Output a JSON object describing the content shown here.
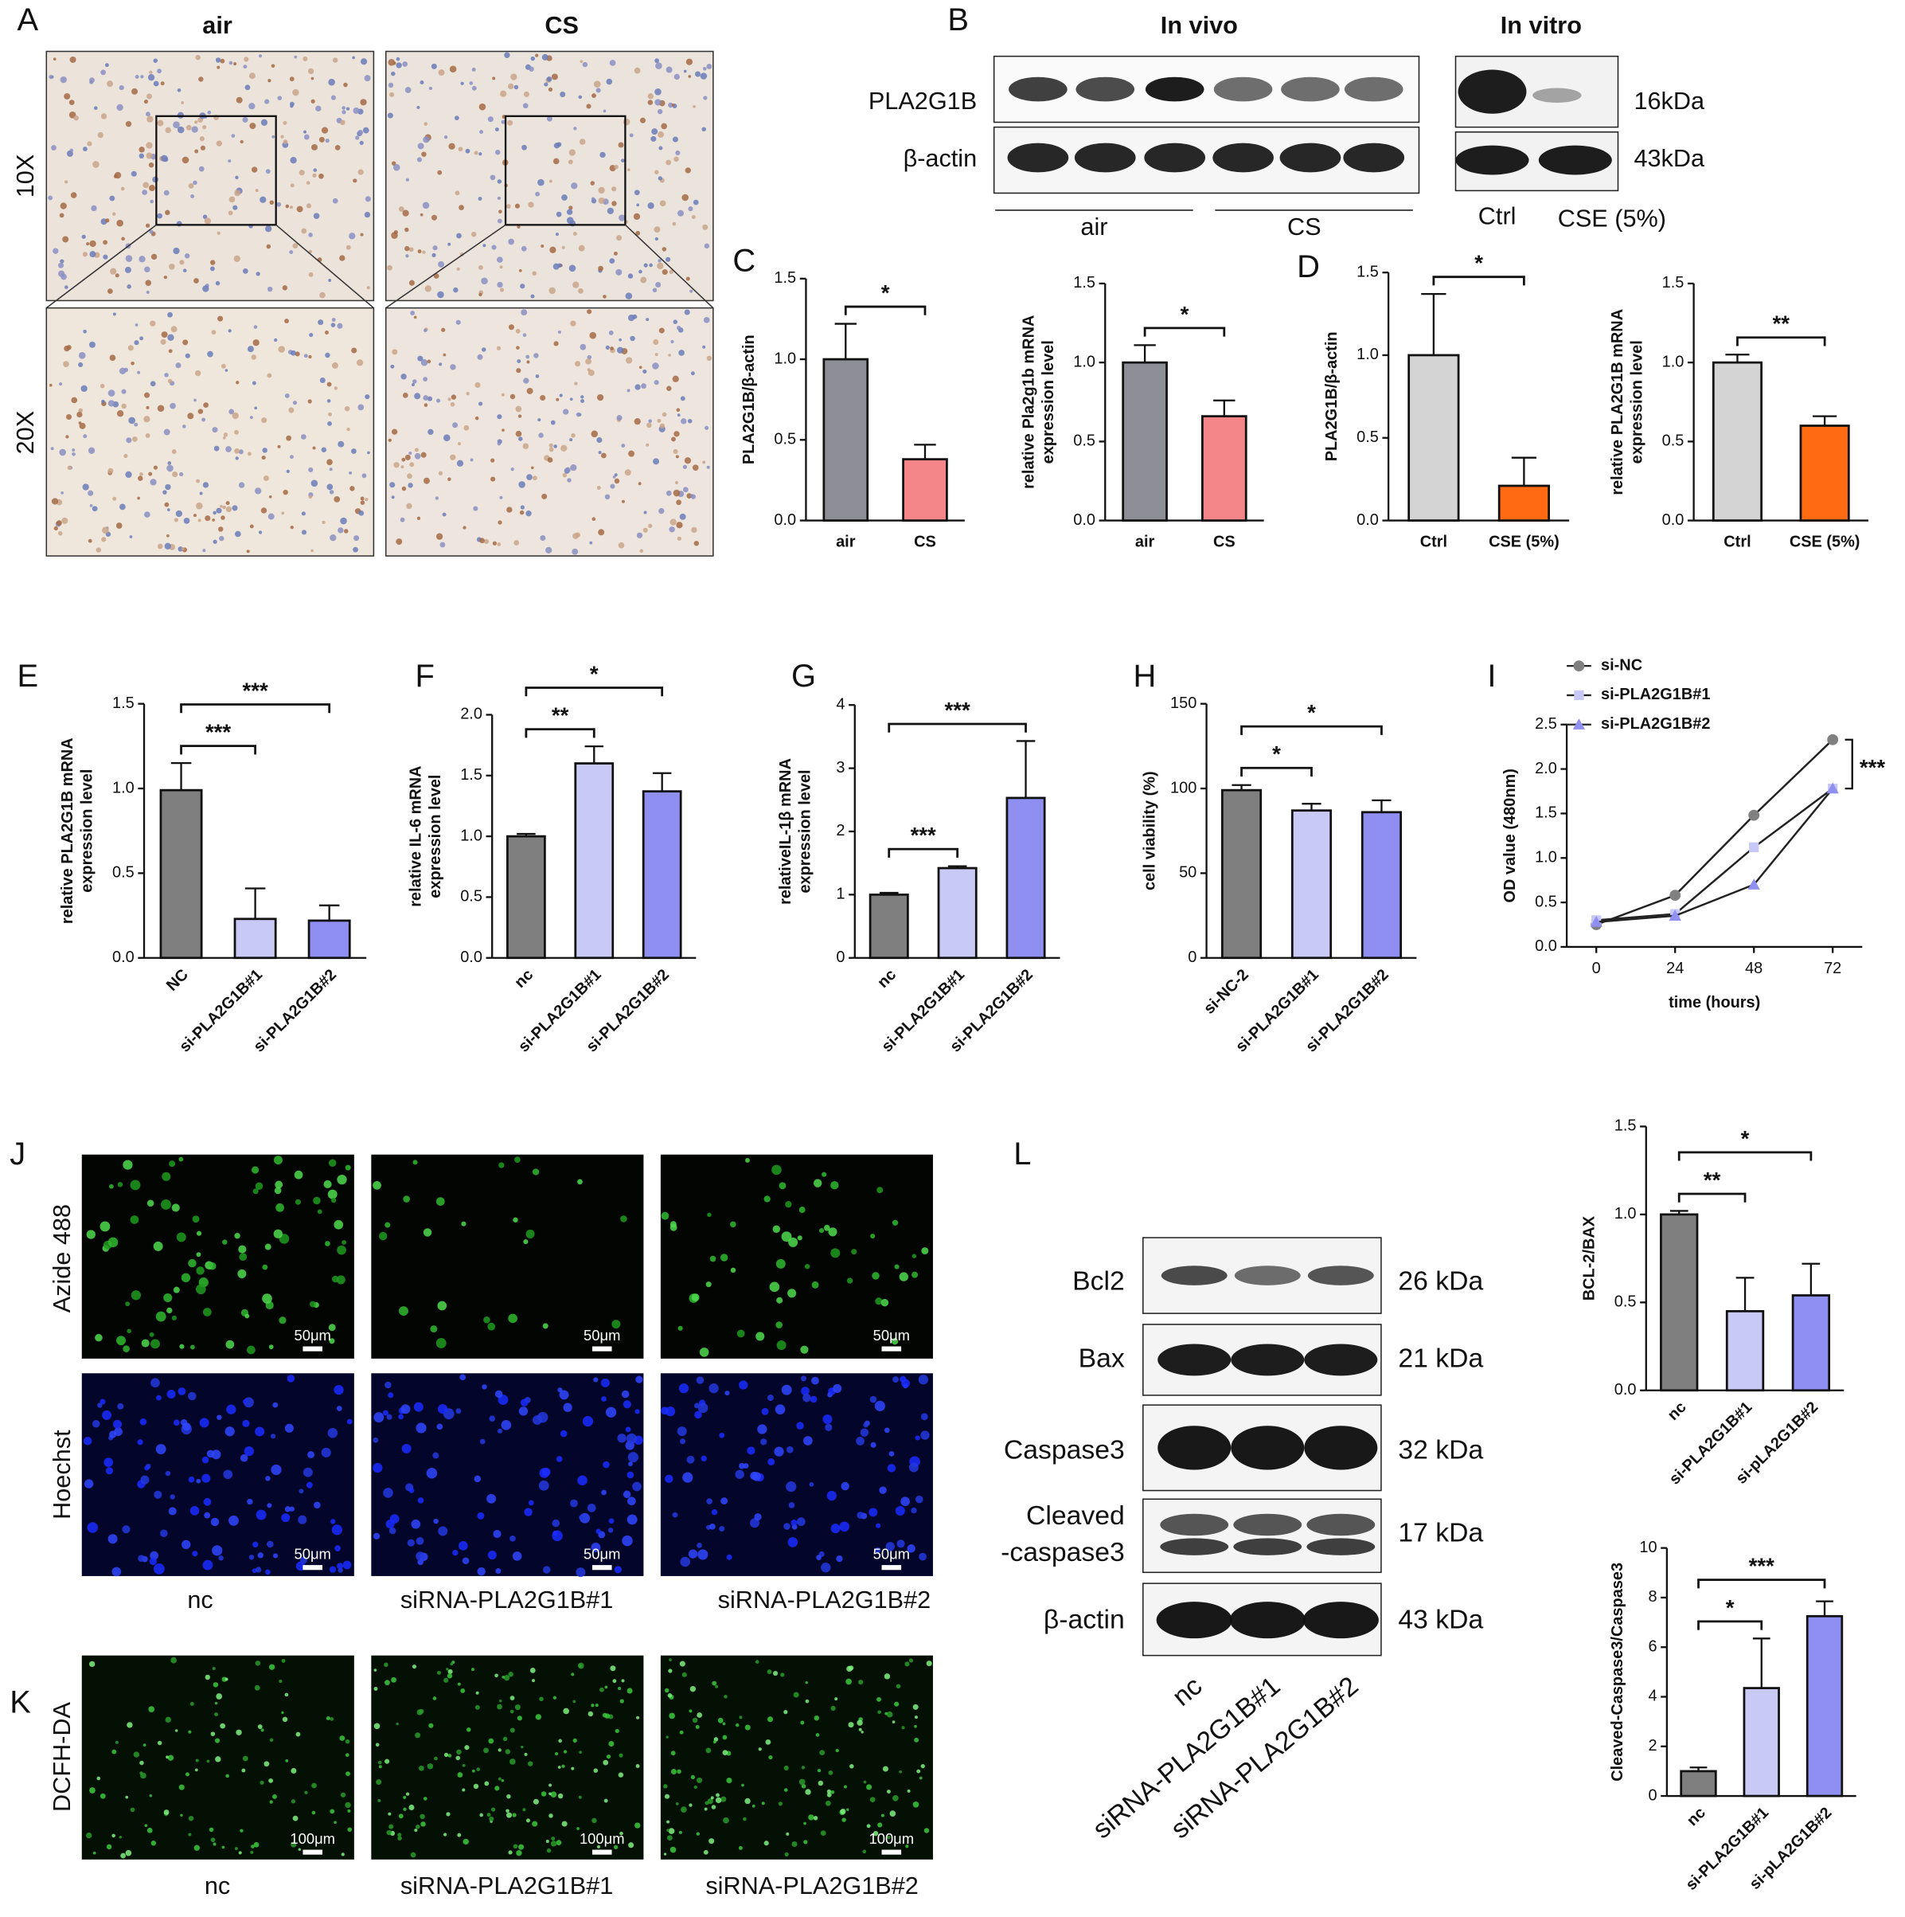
{
  "panel_labels": [
    "A",
    "B",
    "C",
    "D",
    "E",
    "F",
    "G",
    "H",
    "I",
    "J",
    "K",
    "L"
  ],
  "panel_a": {
    "columns": [
      "air",
      "CS"
    ],
    "rows": [
      "10X",
      "20X"
    ]
  },
  "panel_b": {
    "in_vivo": "In vivo",
    "in_vitro": "In vitro",
    "proteins": [
      "PLA2G1B",
      "β-actin"
    ],
    "sizes": [
      "16kDa",
      "43kDa"
    ],
    "groups_vivo": [
      "air",
      "CS"
    ],
    "groups_vitro": [
      "Ctrl",
      "CSE (5%)"
    ]
  },
  "panel_j": {
    "rows": [
      "Azide 488",
      "Hoechst"
    ],
    "scale": "50μm",
    "columns": [
      "nc",
      "siRNA-PLA2G1B#1",
      "siRNA-PLA2G1B#2"
    ]
  },
  "panel_k": {
    "row": "DCFH-DA",
    "scale": "100μm",
    "columns": [
      "nc",
      "siRNA-PLA2G1B#1",
      "siRNA-PLA2G1B#2"
    ]
  },
  "panel_l": {
    "proteins": [
      [
        "Bcl2"
      ],
      [
        "Bax"
      ],
      [
        "Caspase3"
      ],
      [
        "Cleaved",
        "-caspase3"
      ],
      [
        "β-actin"
      ]
    ],
    "sizes": [
      "26 kDa",
      "21 kDa",
      "32 kDa",
      "17 kDa",
      "43 kDa"
    ],
    "lanes": [
      "nc",
      "siRNA-PLA2G1B#1",
      "siRNA-PLA2G1B#2"
    ]
  },
  "chart_data": [
    {
      "type": "bar",
      "y_label": [
        "PLA2G1B/β-actin"
      ],
      "categories": [
        "air",
        "CS"
      ],
      "values": [
        1.0,
        0.38
      ],
      "errors": [
        0.22,
        0.09
      ],
      "colors": [
        "#8e8e96",
        "#f4868a"
      ],
      "ylim": [
        0,
        1.5
      ],
      "yticks": [
        {
          "value": 0,
          "label": "0.0"
        },
        {
          "value": 0.5,
          "label": "0.5"
        },
        {
          "value": 1,
          "label": "1.0"
        },
        {
          "value": 1.5,
          "label": "1.5"
        }
      ],
      "annotations": [
        "*"
      ]
    },
    {
      "type": "bar",
      "y_label": [
        "relative Pla2g1b mRNA",
        "expression level"
      ],
      "categories": [
        "air",
        "CS"
      ],
      "values": [
        1.0,
        0.66
      ],
      "errors": [
        0.11,
        0.1
      ],
      "colors": [
        "#8e8e96",
        "#f4868a"
      ],
      "ylim": [
        0,
        1.5
      ],
      "yticks": [
        {
          "value": 0,
          "label": "0.0"
        },
        {
          "value": 0.5,
          "label": "0.5"
        },
        {
          "value": 1,
          "label": "1.0"
        },
        {
          "value": 1.5,
          "label": "1.5"
        }
      ],
      "annotations": [
        "*"
      ]
    },
    {
      "type": "bar",
      "y_label": [
        "PLA2G1B/β-actin"
      ],
      "categories": [
        "Ctrl",
        "CSE (5%)"
      ],
      "values": [
        1.0,
        0.21
      ],
      "errors": [
        0.37,
        0.17
      ],
      "colors": [
        "#d4d4d4",
        "#ff6a13"
      ],
      "ylim": [
        0,
        1.5
      ],
      "yticks": [
        {
          "value": 0,
          "label": "0.0"
        },
        {
          "value": 0.5,
          "label": "0.5"
        },
        {
          "value": 1,
          "label": "1.0"
        },
        {
          "value": 1.5,
          "label": "1.5"
        }
      ],
      "annotations": [
        "*"
      ]
    },
    {
      "type": "bar",
      "y_label": [
        "relative PLA2G1B mRNA",
        "expression level"
      ],
      "categories": [
        "Ctrl",
        "CSE (5%)"
      ],
      "values": [
        1.0,
        0.6
      ],
      "errors": [
        0.05,
        0.06
      ],
      "colors": [
        "#d4d4d4",
        "#ff6a13"
      ],
      "ylim": [
        0,
        1.5
      ],
      "yticks": [
        {
          "value": 0,
          "label": "0.0"
        },
        {
          "value": 0.5,
          "label": "0.5"
        },
        {
          "value": 1,
          "label": "1.0"
        },
        {
          "value": 1.5,
          "label": "1.5"
        }
      ],
      "annotations": [
        "**"
      ]
    },
    {
      "type": "bar",
      "y_label": [
        "relative PLA2G1B mRNA",
        "expression level"
      ],
      "categories": [
        "NC",
        "si-PLA2G1B#1",
        "si-PLA2G1B#2"
      ],
      "values": [
        0.99,
        0.23,
        0.22
      ],
      "errors": [
        0.16,
        0.18,
        0.09
      ],
      "colors": [
        "#7f7f7f",
        "#c9c9f6",
        "#8f8ff2"
      ],
      "ylim": [
        0,
        1.5
      ],
      "yticks": [
        {
          "value": 0,
          "label": "0.0"
        },
        {
          "value": 0.5,
          "label": "0.5"
        },
        {
          "value": 1,
          "label": "1.0"
        },
        {
          "value": 1.5,
          "label": "1.5"
        }
      ],
      "annotations": [
        "***",
        "***"
      ]
    },
    {
      "type": "bar",
      "y_label": [
        "relative IL-6 mRNA",
        "expression level"
      ],
      "categories": [
        "nc",
        "si-PLA2G1B#1",
        "si-PLA2G1B#2"
      ],
      "values": [
        1.0,
        1.6,
        1.37
      ],
      "errors": [
        0.02,
        0.14,
        0.15
      ],
      "colors": [
        "#7f7f7f",
        "#c9c9f6",
        "#8f8ff2"
      ],
      "ylim": [
        0,
        2
      ],
      "yticks": [
        {
          "value": 0,
          "label": "0.0"
        },
        {
          "value": 0.5,
          "label": "0.5"
        },
        {
          "value": 1,
          "label": "1.0"
        },
        {
          "value": 1.5,
          "label": "1.5"
        },
        {
          "value": 2,
          "label": "2.0"
        }
      ],
      "annotations": [
        "**",
        "*"
      ]
    },
    {
      "type": "bar",
      "y_label": [
        "relativeIL-1β mRNA",
        "expression level"
      ],
      "categories": [
        "nc",
        "si-PLA2G1B#1",
        "si-PLA2G1B#2"
      ],
      "values": [
        1.0,
        1.42,
        2.53
      ],
      "errors": [
        0.03,
        0.03,
        0.9
      ],
      "colors": [
        "#7f7f7f",
        "#c9c9f6",
        "#8f8ff2"
      ],
      "ylim": [
        0,
        4
      ],
      "yticks": [
        0,
        1,
        2,
        3,
        4
      ],
      "annotations": [
        "***",
        "***"
      ]
    },
    {
      "type": "bar",
      "y_label": [
        "cell viability (%)"
      ],
      "categories": [
        "si-NC-2",
        "si-PLA2G1B#1",
        "si-PLA2G1B#2"
      ],
      "values": [
        99,
        87,
        86
      ],
      "errors": [
        3,
        4,
        7
      ],
      "colors": [
        "#7f7f7f",
        "#c9c9f6",
        "#8f8ff2"
      ],
      "ylim": [
        0,
        150
      ],
      "yticks": [
        0,
        50,
        100,
        150
      ],
      "annotations": [
        "*",
        "*"
      ]
    },
    {
      "type": "line",
      "y_label": [
        "OD value (480nm)"
      ],
      "x_label": "time (hours)",
      "x": [
        0,
        24,
        48,
        72
      ],
      "xlim": [
        -9,
        81
      ],
      "xticks": [
        0,
        24,
        48,
        72
      ],
      "ylim": [
        0,
        2.5
      ],
      "yticks": [
        {
          "value": 0,
          "label": "0.0"
        },
        {
          "value": 0.5,
          "label": "0.5"
        },
        {
          "value": 1,
          "label": "1.0"
        },
        {
          "value": 1.5,
          "label": "1.5"
        },
        {
          "value": 2,
          "label": "2.0"
        },
        {
          "value": 2.5,
          "label": "2.5"
        }
      ],
      "series": [
        {
          "name": "si-NC",
          "color": "#808080",
          "marker": "circle",
          "values": [
            0.25,
            0.58,
            1.48,
            2.33
          ]
        },
        {
          "name": "si-PLA2G1B#1",
          "color": "#c8c8f8",
          "marker": "square",
          "values": [
            0.3,
            0.37,
            1.12,
            1.78
          ]
        },
        {
          "name": "si-PLA2G1B#2",
          "color": "#9090f0",
          "marker": "triangle",
          "values": [
            0.28,
            0.35,
            0.7,
            1.78
          ]
        }
      ],
      "annotations": [
        "***"
      ]
    },
    {
      "type": "bar",
      "y_label": [
        "BCL-2/BAX"
      ],
      "categories": [
        "nc",
        "si-PLA2G1B#1",
        "si-pLA2G1B#2"
      ],
      "values": [
        1.0,
        0.45,
        0.54
      ],
      "errors": [
        0.02,
        0.19,
        0.18
      ],
      "colors": [
        "#7f7f7f",
        "#c9c9f6",
        "#8f8ff2"
      ],
      "ylim": [
        0,
        1.5
      ],
      "yticks": [
        {
          "value": 0,
          "label": "0.0"
        },
        {
          "value": 0.5,
          "label": "0.5"
        },
        {
          "value": 1,
          "label": "1.0"
        },
        {
          "value": 1.5,
          "label": "1.5"
        }
      ],
      "annotations": [
        "**",
        "*"
      ]
    },
    {
      "type": "bar",
      "y_label": [
        "Cleaved-Caspase3/Caspase3"
      ],
      "categories": [
        "nc",
        "si-PLA2G1B#1",
        "si-pLA2G1B#2"
      ],
      "values": [
        1.0,
        4.35,
        7.25
      ],
      "errors": [
        0.15,
        2.0,
        0.6
      ],
      "colors": [
        "#7f7f7f",
        "#c9c9f6",
        "#8f8ff2"
      ],
      "ylim": [
        0,
        10
      ],
      "yticks": [
        0,
        2,
        4,
        6,
        8,
        10
      ],
      "annotations": [
        "*",
        "***"
      ]
    }
  ]
}
